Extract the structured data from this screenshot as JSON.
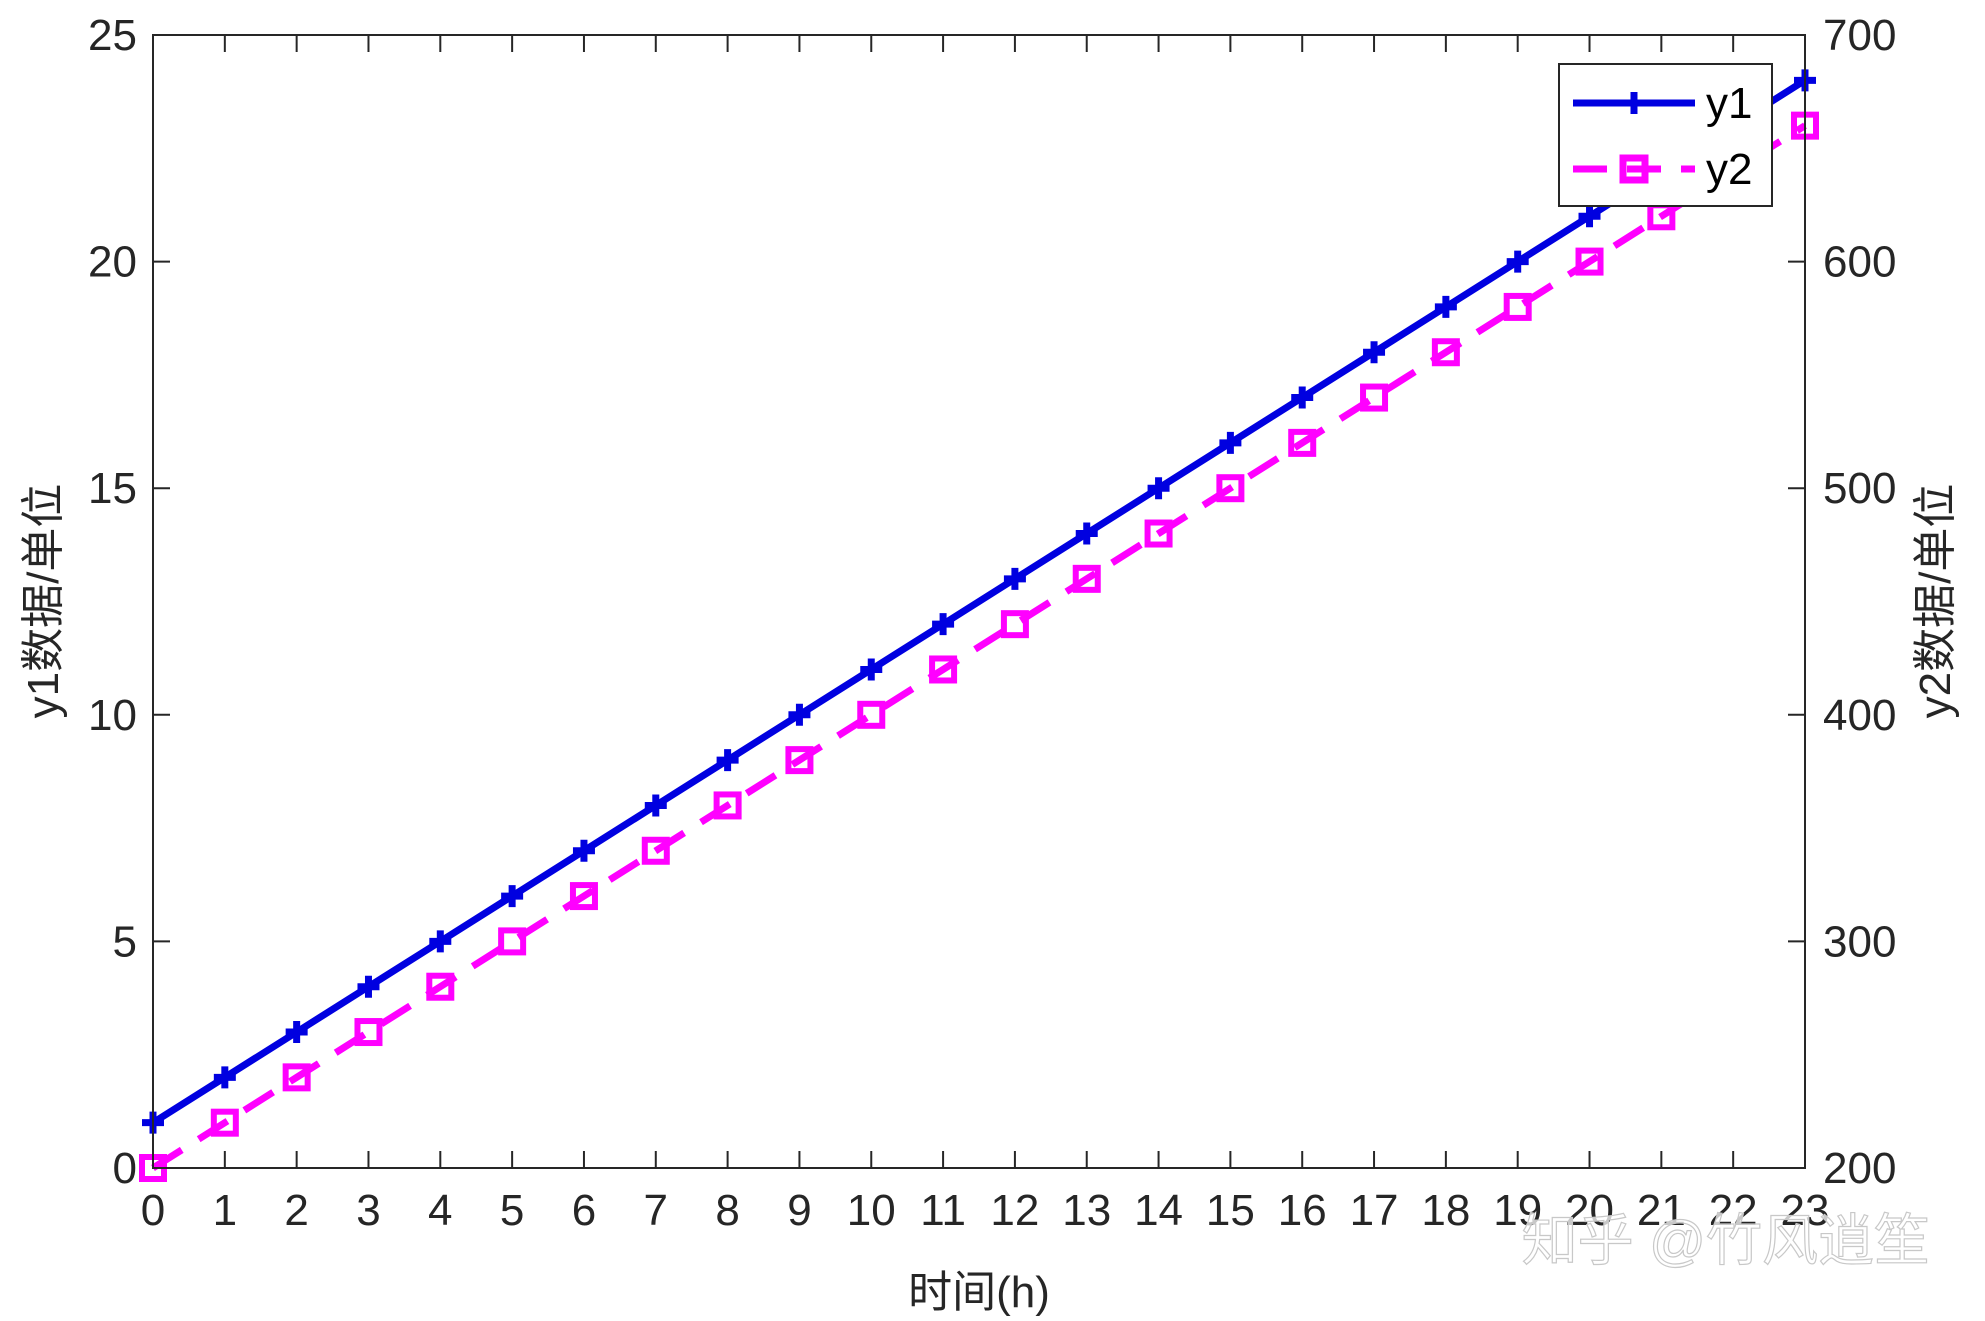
{
  "chart_data": {
    "type": "line",
    "x": [
      0,
      1,
      2,
      3,
      4,
      5,
      6,
      7,
      8,
      9,
      10,
      11,
      12,
      13,
      14,
      15,
      16,
      17,
      18,
      19,
      20,
      21,
      22,
      23
    ],
    "series": [
      {
        "name": "y1",
        "axis": "left",
        "color": "#0000e0",
        "line_style": "solid",
        "marker": "plus",
        "values": [
          1,
          2,
          3,
          4,
          5,
          6,
          7,
          8,
          9,
          10,
          11,
          12,
          13,
          14,
          15,
          16,
          17,
          18,
          19,
          20,
          21,
          22,
          23,
          24
        ]
      },
      {
        "name": "y2",
        "axis": "right",
        "color": "#ff00ff",
        "line_style": "dashed",
        "marker": "square",
        "values": [
          200,
          220,
          240,
          260,
          280,
          300,
          320,
          340,
          360,
          380,
          400,
          420,
          440,
          460,
          480,
          500,
          520,
          540,
          560,
          580,
          600,
          620,
          640,
          660
        ]
      }
    ],
    "xlabel": "时间(h)",
    "ylabel_left": "y1数据/单位",
    "ylabel_right": "y2数据/单位",
    "xlim": [
      0,
      23
    ],
    "ylim_left": [
      0,
      25
    ],
    "ylim_right": [
      200,
      700
    ],
    "xticks": [
      "0",
      "1",
      "2",
      "3",
      "4",
      "5",
      "6",
      "7",
      "8",
      "9",
      "10",
      "11",
      "12",
      "13",
      "14",
      "15",
      "16",
      "17",
      "18",
      "19",
      "20",
      "21",
      "22",
      "23"
    ],
    "yticks_left": [
      "0",
      "5",
      "10",
      "15",
      "20",
      "25"
    ],
    "yticks_right": [
      "200",
      "300",
      "400",
      "500",
      "600",
      "700"
    ],
    "grid": false,
    "legend_position": "top-right"
  },
  "watermark": "知乎 @竹风逍笙"
}
